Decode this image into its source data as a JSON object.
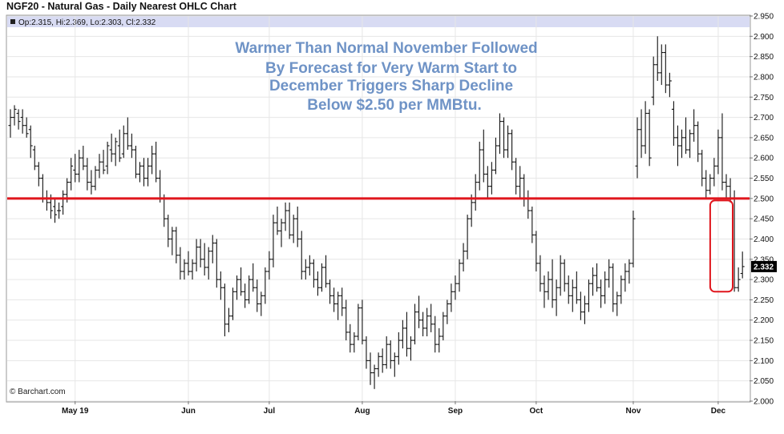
{
  "title": "NGF20 - Natural Gas - Daily Nearest OHLC Chart",
  "info_line": "Op:2.315, Hi:2.369, Lo:2.303, Cl:2.332",
  "watermark": "© Barchart.com",
  "annotation_lines": [
    "Warmer Than Normal November Followed",
    "By Forecast for Very Warm Start to",
    "December Triggers Sharp Decline",
    "Below $2.50 per MMBtu."
  ],
  "colors": {
    "bars": "#111111",
    "reference_line": "#e0161d",
    "highlight": "#e0161d",
    "annotation": "#6f93c6",
    "info_band": "#d8dbf3",
    "last_label_bg": "#000000"
  },
  "chart_data": {
    "type": "ohlc",
    "symbol": "NGF20",
    "ylim": [
      2.0,
      2.95
    ],
    "y_ticks": [
      "2.000",
      "2.050",
      "2.100",
      "2.150",
      "2.200",
      "2.250",
      "2.300",
      "2.350",
      "2.400",
      "2.450",
      "2.500",
      "2.550",
      "2.600",
      "2.650",
      "2.700",
      "2.750",
      "2.800",
      "2.850",
      "2.900",
      "2.950"
    ],
    "x_ticks": [
      {
        "label": "May 19",
        "index": 16
      },
      {
        "label": "Jun",
        "index": 44
      },
      {
        "label": "Jul",
        "index": 64
      },
      {
        "label": "Aug",
        "index": 87
      },
      {
        "label": "Sep",
        "index": 110
      },
      {
        "label": "Oct",
        "index": 130
      },
      {
        "label": "Nov",
        "index": 154
      },
      {
        "label": "Dec",
        "index": 175
      }
    ],
    "reference_line": {
      "y": 2.5
    },
    "last_value": "2.332",
    "highlight_range": {
      "start_index": 175,
      "end_index": 177,
      "low": 2.27,
      "high": 2.495
    },
    "bar_count": 178,
    "bars": [
      {
        "o": 2.68,
        "h": 2.72,
        "l": 2.65,
        "c": 2.7
      },
      {
        "o": 2.7,
        "h": 2.73,
        "l": 2.68,
        "c": 2.72
      },
      {
        "o": 2.71,
        "h": 2.72,
        "l": 2.67,
        "c": 2.69
      },
      {
        "o": 2.7,
        "h": 2.72,
        "l": 2.66,
        "c": 2.68
      },
      {
        "o": 2.68,
        "h": 2.7,
        "l": 2.65,
        "c": 2.66
      },
      {
        "o": 2.67,
        "h": 2.68,
        "l": 2.6,
        "c": 2.63
      },
      {
        "o": 2.62,
        "h": 2.63,
        "l": 2.57,
        "c": 2.58
      },
      {
        "o": 2.58,
        "h": 2.59,
        "l": 2.53,
        "c": 2.55
      },
      {
        "o": 2.55,
        "h": 2.56,
        "l": 2.49,
        "c": 2.5
      },
      {
        "o": 2.5,
        "h": 2.52,
        "l": 2.47,
        "c": 2.49
      },
      {
        "o": 2.49,
        "h": 2.51,
        "l": 2.45,
        "c": 2.47
      },
      {
        "o": 2.48,
        "h": 2.5,
        "l": 2.44,
        "c": 2.46
      },
      {
        "o": 2.47,
        "h": 2.49,
        "l": 2.45,
        "c": 2.47
      },
      {
        "o": 2.48,
        "h": 2.52,
        "l": 2.46,
        "c": 2.51
      },
      {
        "o": 2.51,
        "h": 2.55,
        "l": 2.49,
        "c": 2.54
      },
      {
        "o": 2.54,
        "h": 2.6,
        "l": 2.52,
        "c": 2.58
      },
      {
        "o": 2.57,
        "h": 2.61,
        "l": 2.54,
        "c": 2.56
      },
      {
        "o": 2.56,
        "h": 2.62,
        "l": 2.54,
        "c": 2.6
      },
      {
        "o": 2.6,
        "h": 2.63,
        "l": 2.57,
        "c": 2.58
      },
      {
        "o": 2.58,
        "h": 2.6,
        "l": 2.52,
        "c": 2.54
      },
      {
        "o": 2.54,
        "h": 2.57,
        "l": 2.51,
        "c": 2.53
      },
      {
        "o": 2.53,
        "h": 2.58,
        "l": 2.52,
        "c": 2.57
      },
      {
        "o": 2.57,
        "h": 2.61,
        "l": 2.55,
        "c": 2.59
      },
      {
        "o": 2.59,
        "h": 2.62,
        "l": 2.56,
        "c": 2.57
      },
      {
        "o": 2.58,
        "h": 2.64,
        "l": 2.56,
        "c": 2.63
      },
      {
        "o": 2.62,
        "h": 2.66,
        "l": 2.59,
        "c": 2.61
      },
      {
        "o": 2.61,
        "h": 2.65,
        "l": 2.58,
        "c": 2.64
      },
      {
        "o": 2.63,
        "h": 2.67,
        "l": 2.59,
        "c": 2.6
      },
      {
        "o": 2.61,
        "h": 2.68,
        "l": 2.6,
        "c": 2.66
      },
      {
        "o": 2.66,
        "h": 2.7,
        "l": 2.62,
        "c": 2.63
      },
      {
        "o": 2.63,
        "h": 2.66,
        "l": 2.6,
        "c": 2.62
      },
      {
        "o": 2.62,
        "h": 2.63,
        "l": 2.55,
        "c": 2.56
      },
      {
        "o": 2.56,
        "h": 2.59,
        "l": 2.54,
        "c": 2.58
      },
      {
        "o": 2.58,
        "h": 2.6,
        "l": 2.53,
        "c": 2.55
      },
      {
        "o": 2.55,
        "h": 2.6,
        "l": 2.53,
        "c": 2.58
      },
      {
        "o": 2.58,
        "h": 2.63,
        "l": 2.56,
        "c": 2.61
      },
      {
        "o": 2.61,
        "h": 2.64,
        "l": 2.54,
        "c": 2.55
      },
      {
        "o": 2.55,
        "h": 2.57,
        "l": 2.49,
        "c": 2.5
      },
      {
        "o": 2.5,
        "h": 2.51,
        "l": 2.43,
        "c": 2.45
      },
      {
        "o": 2.45,
        "h": 2.46,
        "l": 2.38,
        "c": 2.4
      },
      {
        "o": 2.4,
        "h": 2.43,
        "l": 2.36,
        "c": 2.42
      },
      {
        "o": 2.42,
        "h": 2.43,
        "l": 2.34,
        "c": 2.36
      },
      {
        "o": 2.36,
        "h": 2.38,
        "l": 2.3,
        "c": 2.32
      },
      {
        "o": 2.32,
        "h": 2.35,
        "l": 2.3,
        "c": 2.34
      },
      {
        "o": 2.34,
        "h": 2.37,
        "l": 2.31,
        "c": 2.32
      },
      {
        "o": 2.32,
        "h": 2.35,
        "l": 2.3,
        "c": 2.34
      },
      {
        "o": 2.34,
        "h": 2.4,
        "l": 2.32,
        "c": 2.38
      },
      {
        "o": 2.38,
        "h": 2.4,
        "l": 2.33,
        "c": 2.35
      },
      {
        "o": 2.35,
        "h": 2.39,
        "l": 2.31,
        "c": 2.33
      },
      {
        "o": 2.33,
        "h": 2.38,
        "l": 2.3,
        "c": 2.37
      },
      {
        "o": 2.37,
        "h": 2.41,
        "l": 2.34,
        "c": 2.39
      },
      {
        "o": 2.39,
        "h": 2.4,
        "l": 2.28,
        "c": 2.3
      },
      {
        "o": 2.3,
        "h": 2.32,
        "l": 2.25,
        "c": 2.28
      },
      {
        "o": 2.28,
        "h": 2.29,
        "l": 2.16,
        "c": 2.19
      },
      {
        "o": 2.19,
        "h": 2.23,
        "l": 2.17,
        "c": 2.21
      },
      {
        "o": 2.21,
        "h": 2.28,
        "l": 2.2,
        "c": 2.27
      },
      {
        "o": 2.27,
        "h": 2.31,
        "l": 2.25,
        "c": 2.3
      },
      {
        "o": 2.3,
        "h": 2.33,
        "l": 2.26,
        "c": 2.27
      },
      {
        "o": 2.27,
        "h": 2.29,
        "l": 2.23,
        "c": 2.25
      },
      {
        "o": 2.25,
        "h": 2.31,
        "l": 2.24,
        "c": 2.3
      },
      {
        "o": 2.3,
        "h": 2.34,
        "l": 2.27,
        "c": 2.28
      },
      {
        "o": 2.28,
        "h": 2.3,
        "l": 2.22,
        "c": 2.24
      },
      {
        "o": 2.24,
        "h": 2.27,
        "l": 2.21,
        "c": 2.26
      },
      {
        "o": 2.26,
        "h": 2.33,
        "l": 2.24,
        "c": 2.32
      },
      {
        "o": 2.32,
        "h": 2.37,
        "l": 2.3,
        "c": 2.35
      },
      {
        "o": 2.35,
        "h": 2.46,
        "l": 2.33,
        "c": 2.44
      },
      {
        "o": 2.44,
        "h": 2.48,
        "l": 2.41,
        "c": 2.42
      },
      {
        "o": 2.42,
        "h": 2.45,
        "l": 2.38,
        "c": 2.44
      },
      {
        "o": 2.44,
        "h": 2.49,
        "l": 2.42,
        "c": 2.47
      },
      {
        "o": 2.47,
        "h": 2.49,
        "l": 2.4,
        "c": 2.41
      },
      {
        "o": 2.41,
        "h": 2.46,
        "l": 2.39,
        "c": 2.45
      },
      {
        "o": 2.45,
        "h": 2.48,
        "l": 2.38,
        "c": 2.4
      },
      {
        "o": 2.4,
        "h": 2.42,
        "l": 2.3,
        "c": 2.32
      },
      {
        "o": 2.32,
        "h": 2.35,
        "l": 2.3,
        "c": 2.33
      },
      {
        "o": 2.33,
        "h": 2.36,
        "l": 2.31,
        "c": 2.34
      },
      {
        "o": 2.34,
        "h": 2.35,
        "l": 2.28,
        "c": 2.3
      },
      {
        "o": 2.3,
        "h": 2.32,
        "l": 2.26,
        "c": 2.28
      },
      {
        "o": 2.28,
        "h": 2.34,
        "l": 2.27,
        "c": 2.33
      },
      {
        "o": 2.33,
        "h": 2.36,
        "l": 2.28,
        "c": 2.29
      },
      {
        "o": 2.29,
        "h": 2.3,
        "l": 2.24,
        "c": 2.26
      },
      {
        "o": 2.26,
        "h": 2.28,
        "l": 2.22,
        "c": 2.24
      },
      {
        "o": 2.24,
        "h": 2.27,
        "l": 2.2,
        "c": 2.26
      },
      {
        "o": 2.26,
        "h": 2.28,
        "l": 2.21,
        "c": 2.23
      },
      {
        "o": 2.23,
        "h": 2.25,
        "l": 2.15,
        "c": 2.17
      },
      {
        "o": 2.17,
        "h": 2.19,
        "l": 2.12,
        "c": 2.14
      },
      {
        "o": 2.14,
        "h": 2.17,
        "l": 2.12,
        "c": 2.16
      },
      {
        "o": 2.16,
        "h": 2.24,
        "l": 2.15,
        "c": 2.23
      },
      {
        "o": 2.23,
        "h": 2.25,
        "l": 2.14,
        "c": 2.15
      },
      {
        "o": 2.15,
        "h": 2.16,
        "l": 2.08,
        "c": 2.1
      },
      {
        "o": 2.1,
        "h": 2.12,
        "l": 2.04,
        "c": 2.07
      },
      {
        "o": 2.07,
        "h": 2.09,
        "l": 2.03,
        "c": 2.08
      },
      {
        "o": 2.08,
        "h": 2.12,
        "l": 2.06,
        "c": 2.11
      },
      {
        "o": 2.11,
        "h": 2.13,
        "l": 2.07,
        "c": 2.09
      },
      {
        "o": 2.09,
        "h": 2.16,
        "l": 2.08,
        "c": 2.14
      },
      {
        "o": 2.14,
        "h": 2.15,
        "l": 2.08,
        "c": 2.1
      },
      {
        "o": 2.1,
        "h": 2.12,
        "l": 2.06,
        "c": 2.11
      },
      {
        "o": 2.11,
        "h": 2.17,
        "l": 2.09,
        "c": 2.15
      },
      {
        "o": 2.15,
        "h": 2.2,
        "l": 2.13,
        "c": 2.18
      },
      {
        "o": 2.18,
        "h": 2.22,
        "l": 2.11,
        "c": 2.13
      },
      {
        "o": 2.13,
        "h": 2.16,
        "l": 2.1,
        "c": 2.15
      },
      {
        "o": 2.15,
        "h": 2.24,
        "l": 2.14,
        "c": 2.22
      },
      {
        "o": 2.22,
        "h": 2.26,
        "l": 2.18,
        "c": 2.2
      },
      {
        "o": 2.2,
        "h": 2.22,
        "l": 2.16,
        "c": 2.18
      },
      {
        "o": 2.18,
        "h": 2.23,
        "l": 2.16,
        "c": 2.21
      },
      {
        "o": 2.21,
        "h": 2.24,
        "l": 2.17,
        "c": 2.19
      },
      {
        "o": 2.19,
        "h": 2.21,
        "l": 2.12,
        "c": 2.14
      },
      {
        "o": 2.14,
        "h": 2.18,
        "l": 2.12,
        "c": 2.16
      },
      {
        "o": 2.16,
        "h": 2.22,
        "l": 2.15,
        "c": 2.21
      },
      {
        "o": 2.21,
        "h": 2.25,
        "l": 2.19,
        "c": 2.24
      },
      {
        "o": 2.24,
        "h": 2.29,
        "l": 2.22,
        "c": 2.27
      },
      {
        "o": 2.27,
        "h": 2.31,
        "l": 2.25,
        "c": 2.29
      },
      {
        "o": 2.29,
        "h": 2.35,
        "l": 2.27,
        "c": 2.34
      },
      {
        "o": 2.34,
        "h": 2.39,
        "l": 2.32,
        "c": 2.37
      },
      {
        "o": 2.37,
        "h": 2.46,
        "l": 2.35,
        "c": 2.45
      },
      {
        "o": 2.45,
        "h": 2.51,
        "l": 2.43,
        "c": 2.49
      },
      {
        "o": 2.49,
        "h": 2.56,
        "l": 2.47,
        "c": 2.54
      },
      {
        "o": 2.54,
        "h": 2.64,
        "l": 2.52,
        "c": 2.62
      },
      {
        "o": 2.62,
        "h": 2.67,
        "l": 2.54,
        "c": 2.56
      },
      {
        "o": 2.56,
        "h": 2.58,
        "l": 2.5,
        "c": 2.53
      },
      {
        "o": 2.53,
        "h": 2.59,
        "l": 2.51,
        "c": 2.57
      },
      {
        "o": 2.57,
        "h": 2.65,
        "l": 2.56,
        "c": 2.63
      },
      {
        "o": 2.63,
        "h": 2.71,
        "l": 2.61,
        "c": 2.69
      },
      {
        "o": 2.69,
        "h": 2.7,
        "l": 2.6,
        "c": 2.62
      },
      {
        "o": 2.62,
        "h": 2.68,
        "l": 2.6,
        "c": 2.66
      },
      {
        "o": 2.66,
        "h": 2.67,
        "l": 2.57,
        "c": 2.59
      },
      {
        "o": 2.59,
        "h": 2.6,
        "l": 2.51,
        "c": 2.53
      },
      {
        "o": 2.53,
        "h": 2.58,
        "l": 2.5,
        "c": 2.55
      },
      {
        "o": 2.55,
        "h": 2.56,
        "l": 2.48,
        "c": 2.5
      },
      {
        "o": 2.5,
        "h": 2.52,
        "l": 2.45,
        "c": 2.47
      },
      {
        "o": 2.47,
        "h": 2.48,
        "l": 2.39,
        "c": 2.41
      },
      {
        "o": 2.41,
        "h": 2.42,
        "l": 2.32,
        "c": 2.34
      },
      {
        "o": 2.34,
        "h": 2.36,
        "l": 2.27,
        "c": 2.29
      },
      {
        "o": 2.29,
        "h": 2.31,
        "l": 2.23,
        "c": 2.27
      },
      {
        "o": 2.27,
        "h": 2.32,
        "l": 2.25,
        "c": 2.3
      },
      {
        "o": 2.3,
        "h": 2.35,
        "l": 2.23,
        "c": 2.25
      },
      {
        "o": 2.25,
        "h": 2.3,
        "l": 2.21,
        "c": 2.28
      },
      {
        "o": 2.28,
        "h": 2.36,
        "l": 2.26,
        "c": 2.34
      },
      {
        "o": 2.34,
        "h": 2.35,
        "l": 2.27,
        "c": 2.29
      },
      {
        "o": 2.29,
        "h": 2.31,
        "l": 2.24,
        "c": 2.26
      },
      {
        "o": 2.26,
        "h": 2.3,
        "l": 2.22,
        "c": 2.28
      },
      {
        "o": 2.28,
        "h": 2.32,
        "l": 2.24,
        "c": 2.25
      },
      {
        "o": 2.25,
        "h": 2.27,
        "l": 2.2,
        "c": 2.22
      },
      {
        "o": 2.22,
        "h": 2.26,
        "l": 2.19,
        "c": 2.24
      },
      {
        "o": 2.24,
        "h": 2.3,
        "l": 2.22,
        "c": 2.29
      },
      {
        "o": 2.29,
        "h": 2.33,
        "l": 2.26,
        "c": 2.31
      },
      {
        "o": 2.31,
        "h": 2.34,
        "l": 2.27,
        "c": 2.28
      },
      {
        "o": 2.28,
        "h": 2.3,
        "l": 2.23,
        "c": 2.26
      },
      {
        "o": 2.26,
        "h": 2.32,
        "l": 2.24,
        "c": 2.3
      },
      {
        "o": 2.3,
        "h": 2.35,
        "l": 2.28,
        "c": 2.33
      },
      {
        "o": 2.33,
        "h": 2.34,
        "l": 2.22,
        "c": 2.24
      },
      {
        "o": 2.24,
        "h": 2.27,
        "l": 2.21,
        "c": 2.26
      },
      {
        "o": 2.26,
        "h": 2.31,
        "l": 2.24,
        "c": 2.3
      },
      {
        "o": 2.3,
        "h": 2.34,
        "l": 2.27,
        "c": 2.32
      },
      {
        "o": 2.32,
        "h": 2.35,
        "l": 2.29,
        "c": 2.34
      },
      {
        "o": 2.34,
        "h": 2.47,
        "l": 2.33,
        "c": 2.45
      },
      {
        "o": 2.58,
        "h": 2.7,
        "l": 2.55,
        "c": 2.67
      },
      {
        "o": 2.67,
        "h": 2.72,
        "l": 2.6,
        "c": 2.63
      },
      {
        "o": 2.63,
        "h": 2.74,
        "l": 2.61,
        "c": 2.71
      },
      {
        "o": 2.71,
        "h": 2.72,
        "l": 2.58,
        "c": 2.6
      },
      {
        "o": 2.75,
        "h": 2.85,
        "l": 2.73,
        "c": 2.83
      },
      {
        "o": 2.83,
        "h": 2.9,
        "l": 2.79,
        "c": 2.81
      },
      {
        "o": 2.81,
        "h": 2.88,
        "l": 2.78,
        "c": 2.86
      },
      {
        "o": 2.86,
        "h": 2.88,
        "l": 2.76,
        "c": 2.78
      },
      {
        "o": 2.78,
        "h": 2.81,
        "l": 2.75,
        "c": 2.79
      },
      {
        "o": 2.72,
        "h": 2.74,
        "l": 2.63,
        "c": 2.65
      },
      {
        "o": 2.65,
        "h": 2.68,
        "l": 2.58,
        "c": 2.63
      },
      {
        "o": 2.63,
        "h": 2.67,
        "l": 2.6,
        "c": 2.65
      },
      {
        "o": 2.65,
        "h": 2.7,
        "l": 2.61,
        "c": 2.62
      },
      {
        "o": 2.62,
        "h": 2.67,
        "l": 2.6,
        "c": 2.66
      },
      {
        "o": 2.66,
        "h": 2.72,
        "l": 2.64,
        "c": 2.68
      },
      {
        "o": 2.68,
        "h": 2.69,
        "l": 2.59,
        "c": 2.61
      },
      {
        "o": 2.61,
        "h": 2.62,
        "l": 2.53,
        "c": 2.55
      },
      {
        "o": 2.55,
        "h": 2.57,
        "l": 2.5,
        "c": 2.52
      },
      {
        "o": 2.52,
        "h": 2.56,
        "l": 2.51,
        "c": 2.55
      },
      {
        "o": 2.55,
        "h": 2.6,
        "l": 2.53,
        "c": 2.58
      },
      {
        "o": 2.58,
        "h": 2.67,
        "l": 2.56,
        "c": 2.65
      },
      {
        "o": 2.65,
        "h": 2.71,
        "l": 2.52,
        "c": 2.54
      },
      {
        "o": 2.54,
        "h": 2.56,
        "l": 2.5,
        "c": 2.53
      },
      {
        "o": 2.53,
        "h": 2.55,
        "l": 2.49,
        "c": 2.5
      },
      {
        "o": 2.5,
        "h": 2.52,
        "l": 2.27,
        "c": 2.28
      },
      {
        "o": 2.28,
        "h": 2.33,
        "l": 2.27,
        "c": 2.3
      },
      {
        "o": 2.315,
        "h": 2.369,
        "l": 2.303,
        "c": 2.332
      }
    ]
  }
}
